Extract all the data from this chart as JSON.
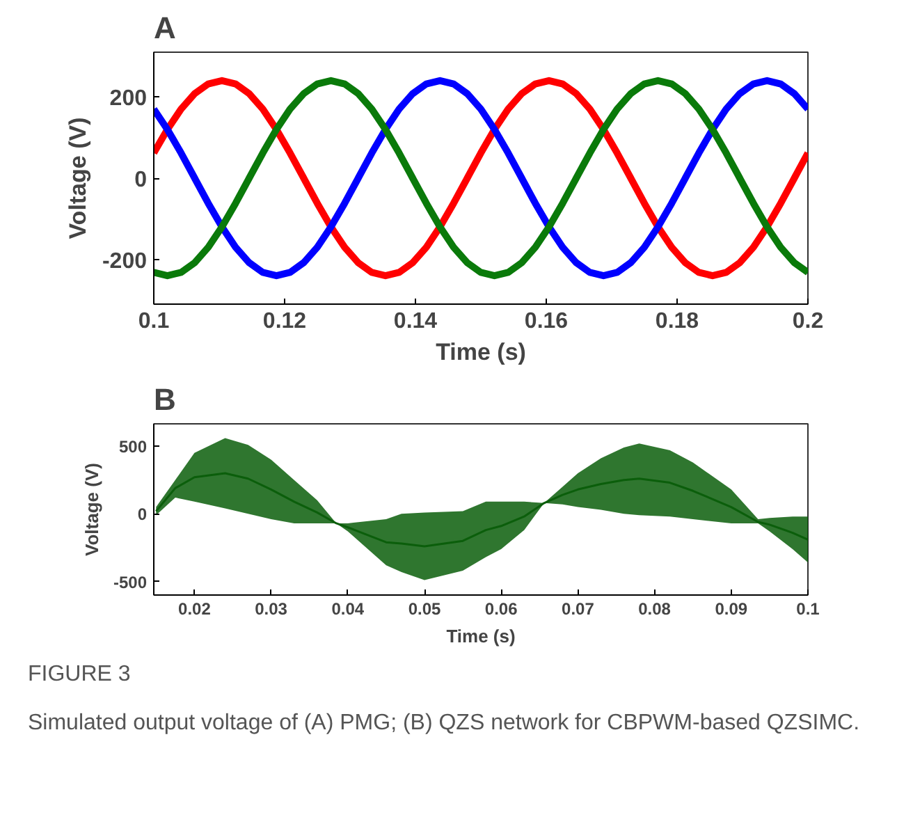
{
  "chart_data": [
    {
      "type": "line",
      "title": "A",
      "xlabel": "Time (s)",
      "ylabel": "Voltage (V)",
      "xlim": [
        0.1,
        0.2
      ],
      "ylim": [
        -310,
        310
      ],
      "xticks": [
        0.1,
        0.12,
        0.14,
        0.16,
        0.18,
        0.2
      ],
      "yticks": [
        -200,
        0,
        200
      ],
      "grid": false,
      "x": [
        0.1,
        0.10208,
        0.10417,
        0.10625,
        0.10833,
        0.11042,
        0.1125,
        0.11458,
        0.11667,
        0.11875,
        0.12083,
        0.12292,
        0.125,
        0.12708,
        0.12917,
        0.13125,
        0.13333,
        0.13542,
        0.1375,
        0.13958,
        0.14167,
        0.14375,
        0.14583,
        0.14792,
        0.15,
        0.15208,
        0.15417,
        0.15625,
        0.15833,
        0.16042,
        0.1625,
        0.16458,
        0.16667,
        0.16875,
        0.17083,
        0.17292,
        0.175,
        0.17708,
        0.17917,
        0.18125,
        0.18333,
        0.18542,
        0.1875,
        0.18958,
        0.19167,
        0.19375,
        0.19583,
        0.19792,
        0.2
      ],
      "series": [
        {
          "color": "#ff0000",
          "values": [
            62,
            120,
            170,
            208,
            232,
            240,
            232,
            208,
            170,
            120,
            62,
            0,
            -62,
            -120,
            -170,
            -208,
            -232,
            -240,
            -232,
            -208,
            -170,
            -120,
            -62,
            0,
            62,
            120,
            170,
            208,
            232,
            240,
            232,
            208,
            170,
            120,
            62,
            0,
            -62,
            -120,
            -170,
            -208,
            -232,
            -240,
            -232,
            -208,
            -170,
            -120,
            -62,
            0,
            62
          ]
        },
        {
          "color": "#0000ff",
          "values": [
            170,
            120,
            62,
            0,
            -62,
            -120,
            -170,
            -208,
            -232,
            -240,
            -232,
            -208,
            -170,
            -120,
            -62,
            0,
            62,
            120,
            170,
            208,
            232,
            240,
            232,
            208,
            170,
            120,
            62,
            0,
            -62,
            -120,
            -170,
            -208,
            -232,
            -240,
            -232,
            -208,
            -170,
            -120,
            -62,
            0,
            62,
            120,
            170,
            208,
            232,
            240,
            232,
            208,
            170
          ]
        },
        {
          "color": "#0a7a0a",
          "values": [
            -232,
            -240,
            -232,
            -208,
            -170,
            -120,
            -62,
            0,
            62,
            120,
            170,
            208,
            232,
            240,
            232,
            208,
            170,
            120,
            62,
            0,
            -62,
            -120,
            -170,
            -208,
            -232,
            -240,
            -232,
            -208,
            -170,
            -120,
            -62,
            0,
            62,
            120,
            170,
            208,
            232,
            240,
            232,
            208,
            170,
            120,
            62,
            0,
            -62,
            -120,
            -170,
            -208,
            -232
          ]
        }
      ]
    },
    {
      "type": "line",
      "title": "B",
      "xlabel": "Time (s)",
      "ylabel": "Voltage (V)",
      "xlim": [
        0.0147,
        0.1
      ],
      "ylim": [
        -600,
        665
      ],
      "xticks": [
        0.02,
        0.03,
        0.04,
        0.05,
        0.06,
        0.07,
        0.08,
        0.09,
        0.1
      ],
      "yticks": [
        -500,
        0,
        500
      ],
      "grid": false,
      "x": [
        0.015,
        0.0175,
        0.02,
        0.024,
        0.027,
        0.03,
        0.033,
        0.036,
        0.0385,
        0.04,
        0.045,
        0.047,
        0.05,
        0.055,
        0.058,
        0.06,
        0.063,
        0.0656,
        0.068,
        0.07,
        0.073,
        0.076,
        0.078,
        0.082,
        0.085,
        0.09,
        0.0935,
        0.095,
        0.098,
        0.1
      ],
      "series": [
        {
          "color": "#0b5e0b",
          "values": [
            20,
            190,
            270,
            300,
            260,
            180,
            90,
            10,
            -70,
            -100,
            -210,
            -220,
            -240,
            -200,
            -120,
            -90,
            -20,
            80,
            140,
            180,
            220,
            250,
            260,
            230,
            170,
            50,
            -60,
            -80,
            -140,
            -190
          ],
          "upper": [
            50,
            250,
            450,
            560,
            510,
            400,
            250,
            100,
            -70,
            -70,
            -40,
            0,
            10,
            20,
            90,
            90,
            90,
            80,
            200,
            300,
            410,
            490,
            520,
            470,
            380,
            180,
            -40,
            -30,
            -20,
            -20
          ],
          "lower": [
            -10,
            120,
            90,
            40,
            0,
            -40,
            -70,
            -70,
            -70,
            -130,
            -380,
            -430,
            -490,
            -420,
            -320,
            -260,
            -120,
            80,
            70,
            50,
            30,
            0,
            -10,
            -20,
            -40,
            -70,
            -70,
            -130,
            -260,
            -360
          ]
        }
      ],
      "annotations": [
        "FIGURE 3",
        "Simulated output voltage of (A) PMG; (B) QZS network for CBPWM-based QZSIMC."
      ]
    }
  ]
}
